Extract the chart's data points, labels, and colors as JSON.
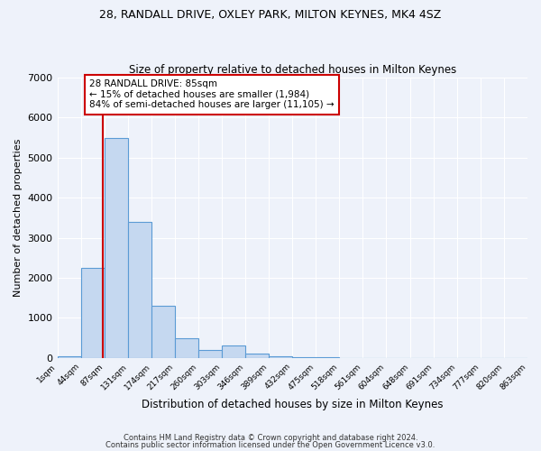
{
  "title1": "28, RANDALL DRIVE, OXLEY PARK, MILTON KEYNES, MK4 4SZ",
  "title2": "Size of property relative to detached houses in Milton Keynes",
  "xlabel": "Distribution of detached houses by size in Milton Keynes",
  "ylabel": "Number of detached properties",
  "bar_color": "#c5d8f0",
  "bar_edge_color": "#5b9bd5",
  "bin_edges": [
    1,
    44,
    87,
    131,
    174,
    217,
    260,
    303,
    346,
    389,
    432,
    475,
    518,
    561,
    604,
    648,
    691,
    734,
    777,
    820,
    863
  ],
  "bar_heights": [
    50,
    2250,
    5500,
    3400,
    1300,
    500,
    200,
    300,
    100,
    50,
    10,
    5,
    2,
    1,
    1,
    0,
    0,
    0,
    0,
    0
  ],
  "property_size": 85,
  "annotation_title": "28 RANDALL DRIVE: 85sqm",
  "annotation_line1": "← 15% of detached houses are smaller (1,984)",
  "annotation_line2": "84% of semi-detached houses are larger (11,105) →",
  "vline_color": "#cc0000",
  "annotation_box_color": "#ffffff",
  "annotation_box_edge": "#cc0000",
  "ylim": [
    0,
    7000
  ],
  "yticks": [
    0,
    1000,
    2000,
    3000,
    4000,
    5000,
    6000,
    7000
  ],
  "footer1": "Contains HM Land Registry data © Crown copyright and database right 2024.",
  "footer2": "Contains public sector information licensed under the Open Government Licence v3.0.",
  "background_color": "#eef2fa",
  "grid_color": "#ffffff"
}
